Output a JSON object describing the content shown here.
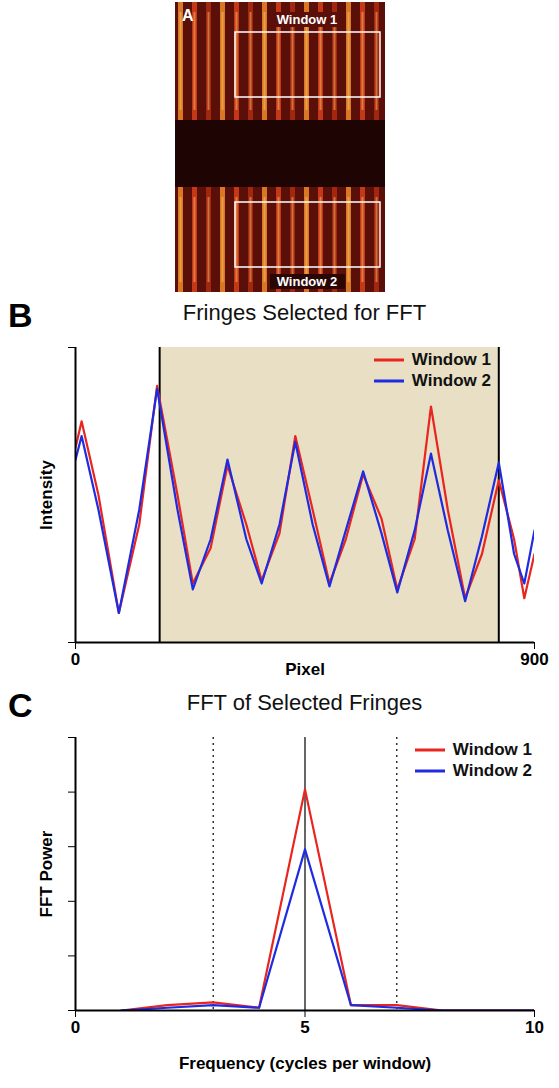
{
  "chart_data": [
    {
      "panel": "A",
      "type": "image",
      "annotations": [
        "Window 1",
        "Window 2"
      ]
    },
    {
      "panel": "B",
      "type": "line",
      "title": "Fringes Selected for FFT",
      "x_label": "Pixel",
      "y_label": "Intensity",
      "x": [
        0,
        12,
        45,
        85,
        125,
        160,
        200,
        230,
        265,
        298,
        335,
        365,
        400,
        431,
        465,
        498,
        530,
        564,
        600,
        631,
        665,
        697,
        730,
        764,
        797,
        830,
        860,
        880,
        900
      ],
      "series": [
        {
          "name": "Window 1",
          "color": "#e8251f",
          "values": [
            0.66,
            0.75,
            0.5,
            0.1,
            0.4,
            0.87,
            0.5,
            0.2,
            0.32,
            0.6,
            0.4,
            0.21,
            0.37,
            0.7,
            0.45,
            0.2,
            0.35,
            0.57,
            0.42,
            0.18,
            0.35,
            0.8,
            0.45,
            0.15,
            0.3,
            0.55,
            0.35,
            0.15,
            0.3
          ]
        },
        {
          "name": "Window 2",
          "color": "#1f2be0",
          "values": [
            0.62,
            0.7,
            0.45,
            0.1,
            0.45,
            0.86,
            0.45,
            0.18,
            0.35,
            0.62,
            0.35,
            0.2,
            0.4,
            0.68,
            0.4,
            0.19,
            0.38,
            0.58,
            0.37,
            0.17,
            0.38,
            0.64,
            0.38,
            0.14,
            0.36,
            0.61,
            0.3,
            0.2,
            0.38
          ]
        }
      ],
      "xlim": [
        0,
        900
      ],
      "xticks": [
        0,
        900
      ],
      "ylim": [
        0,
        1
      ],
      "yticks": [
        0,
        1
      ],
      "tick_labels": "x",
      "legend": "top-right",
      "selected_range": [
        165,
        830
      ]
    },
    {
      "panel": "C",
      "type": "line",
      "title": "FFT of Selected Fringes",
      "x_label": "Frequency (cycles per window)",
      "y_label": "FFT Power",
      "x": [
        1,
        2,
        3,
        4,
        5,
        6,
        7,
        8,
        9,
        10
      ],
      "series": [
        {
          "name": "Window 1",
          "color": "#e8251f",
          "values": [
            0,
            0.02,
            0.03,
            0.01,
            0.81,
            0.02,
            0.02,
            0,
            0,
            0
          ]
        },
        {
          "name": "Window 2",
          "color": "#1f2be0",
          "values": [
            0,
            0.01,
            0.02,
            0.01,
            0.59,
            0.02,
            0.01,
            0,
            0,
            0
          ]
        }
      ],
      "xlim": [
        0,
        10
      ],
      "xticks": [
        0,
        5,
        10
      ],
      "ylim": [
        0,
        1
      ],
      "yticks": [
        0,
        0.2,
        0.4,
        0.6,
        0.8,
        1
      ],
      "tick_labels": "x",
      "legend": "top-right",
      "reference_lines": [
        {
          "x": 3,
          "line_style": "dotted"
        },
        {
          "x": 5,
          "line_style": "solid"
        },
        {
          "x": 7,
          "line_style": "dotted"
        }
      ]
    }
  ]
}
